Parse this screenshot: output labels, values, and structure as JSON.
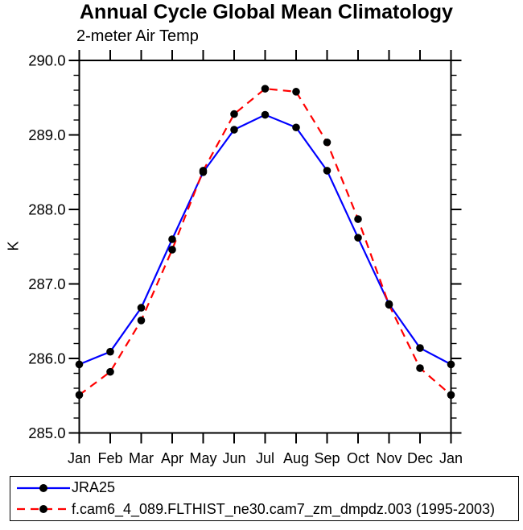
{
  "title": "Annual Cycle Global Mean Climatology",
  "subtitle": "2-meter Air Temp",
  "colors": {
    "series1": "#0000ff",
    "series2": "#ff0000",
    "marker": "#000000",
    "axis": "#000000"
  },
  "chart_data": {
    "type": "line",
    "title": "Annual Cycle Global Mean Climatology",
    "subtitle": "2-meter Air Temp",
    "xlabel": "",
    "ylabel": "K",
    "ylim": [
      285.0,
      290.0
    ],
    "yticks_major": [
      290,
      289,
      288,
      287,
      286,
      285
    ],
    "ytick_labels": [
      "290.0",
      "289.0",
      "288.0",
      "287.0",
      "286.0",
      "285.0"
    ],
    "ytick_minor_step": 0.2,
    "grid": false,
    "legend_position": "bottom-left-box",
    "categories": [
      "Jan",
      "Feb",
      "Mar",
      "Apr",
      "May",
      "Jun",
      "Jul",
      "Aug",
      "Sep",
      "Oct",
      "Nov",
      "Dec",
      "Jan"
    ],
    "series": [
      {
        "name": "JRA25",
        "color": "#0000ff",
        "style": "solid",
        "marker": "circle",
        "marker_color": "#000000",
        "values": [
          285.92,
          286.09,
          286.68,
          287.6,
          288.5,
          289.07,
          289.27,
          289.1,
          288.52,
          287.62,
          286.73,
          286.14,
          285.92
        ]
      },
      {
        "name": "f.cam6_4_089.FLTHIST_ne30.cam7_zm_dmpdz.003 (1995-2003)",
        "color": "#ff0000",
        "style": "dashed",
        "marker": "circle",
        "marker_color": "#000000",
        "values": [
          285.51,
          285.82,
          286.51,
          287.46,
          288.52,
          289.28,
          289.62,
          289.58,
          288.9,
          287.87,
          286.72,
          285.87,
          285.51
        ]
      }
    ]
  }
}
